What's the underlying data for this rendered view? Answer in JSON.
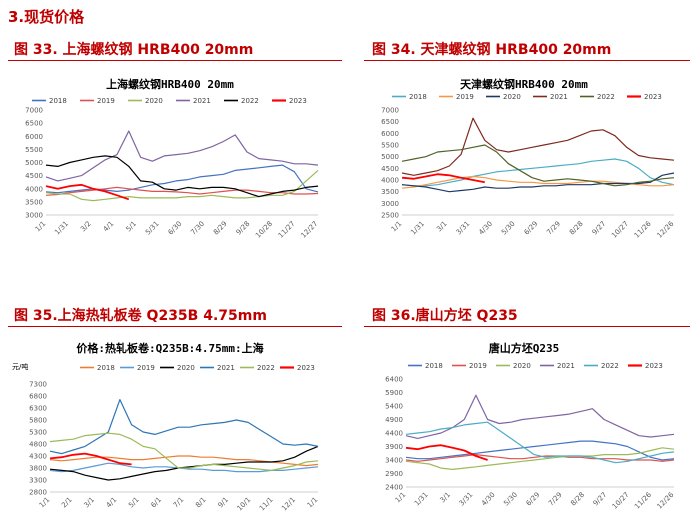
{
  "page": {
    "section_title": "3.现货价格"
  },
  "captions": {
    "fig33": "图 33.  上海螺纹钢 HRB400  20mm",
    "fig34": "图 34.  天津螺纹钢 HRB400  20mm",
    "fig35": "图 35.上海热轧板卷 Q235B 4.75mm",
    "fig36": "图 36.唐山方坯 Q235"
  },
  "colors": {
    "accent": "#c00000",
    "s2018": "#4472c4",
    "s2019": "#e0504f",
    "s2020": "#9bbb59",
    "s2021": "#8064a2",
    "s2022": "#000000",
    "s2023": "#ff0000"
  },
  "chart_data": [
    {
      "type": "line",
      "title": "上海螺纹钢HRB400 20mm",
      "ylim": [
        3000,
        7000
      ],
      "yticks": [
        3000,
        3500,
        4000,
        4500,
        5000,
        5500,
        6000,
        6500,
        7000
      ],
      "xticks": [
        "1/1",
        "1/31",
        "3/2",
        "4/1",
        "5/1",
        "5/31",
        "6/30",
        "7/30",
        "8/29",
        "9/28",
        "10/28",
        "11/27",
        "12/27"
      ],
      "legend_position": "top",
      "series": [
        {
          "name": "2018",
          "color": "#4472c4",
          "values": [
            3880,
            3850,
            3900,
            3950,
            4000,
            3950,
            3900,
            3950,
            4050,
            4150,
            4200,
            4300,
            4350,
            4450,
            4500,
            4550,
            4700,
            4750,
            4800,
            4850,
            4900,
            4650,
            4000,
            3880
          ]
        },
        {
          "name": "2019",
          "color": "#e0504f",
          "values": [
            3750,
            3780,
            3850,
            3900,
            3950,
            4000,
            4050,
            4000,
            3950,
            3900,
            3900,
            3880,
            3850,
            3800,
            3850,
            3900,
            3950,
            3950,
            3900,
            3850,
            3850,
            3800,
            3800,
            3820
          ]
        },
        {
          "name": "2020",
          "color": "#9bbb59",
          "values": [
            3850,
            3800,
            3800,
            3600,
            3550,
            3600,
            3650,
            3700,
            3650,
            3650,
            3650,
            3650,
            3700,
            3700,
            3750,
            3700,
            3650,
            3650,
            3700,
            3750,
            3750,
            3900,
            4300,
            4700
          ]
        },
        {
          "name": "2021",
          "color": "#8064a2",
          "values": [
            4450,
            4300,
            4400,
            4500,
            4800,
            5100,
            5300,
            6200,
            5200,
            5050,
            5250,
            5300,
            5350,
            5450,
            5600,
            5800,
            6050,
            5400,
            5150,
            5100,
            5050,
            4950,
            4950,
            4900
          ]
        },
        {
          "name": "2022",
          "color": "#000000",
          "values": [
            4900,
            4850,
            5000,
            5100,
            5200,
            5250,
            5200,
            4850,
            4300,
            4250,
            4000,
            3950,
            4050,
            4000,
            4050,
            4050,
            4000,
            3850,
            3700,
            3800,
            3900,
            3950,
            4050,
            4100
          ]
        },
        {
          "name": "2023",
          "color": "#ff0000",
          "values": [
            4100,
            4000,
            4100,
            4150,
            4000,
            3900,
            3750,
            3600
          ]
        }
      ]
    },
    {
      "type": "line",
      "title": "天津螺纹钢HRB400 20mm",
      "ylim": [
        2500,
        7000
      ],
      "yticks": [
        2500,
        3000,
        3500,
        4000,
        4500,
        5000,
        5500,
        6000,
        6500,
        7000
      ],
      "xticks": [
        "1/1",
        "1/31",
        "3/1",
        "3/31",
        "4/30",
        "5/30",
        "6/29",
        "7/29",
        "8/28",
        "9/27",
        "10/27",
        "11/26",
        "12/26"
      ],
      "legend_position": "top",
      "series": [
        {
          "name": "2018",
          "color": "#4bacc6",
          "values": [
            3800,
            3750,
            3750,
            3800,
            3900,
            4000,
            4150,
            4250,
            4350,
            4400,
            4450,
            4500,
            4550,
            4600,
            4650,
            4700,
            4800,
            4850,
            4900,
            4800,
            4500,
            4100,
            3900,
            3800
          ]
        },
        {
          "name": "2019",
          "color": "#f79646",
          "values": [
            3650,
            3700,
            3800,
            3900,
            4000,
            4100,
            4150,
            4100,
            4000,
            3950,
            3900,
            3900,
            3850,
            3850,
            3850,
            3900,
            3950,
            3950,
            3900,
            3850,
            3800,
            3750,
            3750,
            3800
          ]
        },
        {
          "name": "2020",
          "color": "#1f3864",
          "values": [
            3800,
            3750,
            3700,
            3600,
            3500,
            3550,
            3600,
            3700,
            3650,
            3650,
            3700,
            3700,
            3750,
            3750,
            3800,
            3800,
            3800,
            3850,
            3850,
            3850,
            3850,
            3900,
            4200,
            4300
          ]
        },
        {
          "name": "2021",
          "color": "#7f2a1e",
          "values": [
            4300,
            4200,
            4300,
            4400,
            4600,
            5100,
            6650,
            5700,
            5300,
            5200,
            5300,
            5400,
            5500,
            5600,
            5700,
            5900,
            6100,
            6150,
            5900,
            5400,
            5050,
            4950,
            4900,
            4850
          ]
        },
        {
          "name": "2022",
          "color": "#4f6228",
          "values": [
            4800,
            4900,
            5000,
            5200,
            5250,
            5300,
            5400,
            5500,
            5200,
            4700,
            4400,
            4100,
            3950,
            4000,
            4050,
            4000,
            3950,
            3850,
            3750,
            3800,
            3900,
            3950,
            4050,
            4100
          ]
        },
        {
          "name": "2023",
          "color": "#ff0000",
          "values": [
            4100,
            4050,
            4150,
            4250,
            4200,
            4100,
            4000,
            3900
          ]
        }
      ]
    },
    {
      "type": "line",
      "title": "价格:热轧板卷:Q235B:4.75mm:上海",
      "unit": "元/吨",
      "ylim": [
        2800,
        7300
      ],
      "yticks": [
        2800,
        3300,
        3800,
        4300,
        4800,
        5300,
        5800,
        6300,
        6800,
        7300
      ],
      "xticks": [
        "1/1",
        "2/1",
        "3/1",
        "4/1",
        "5/1",
        "6/1",
        "7/1",
        "8/1",
        "9/1",
        "10/1",
        "11/1",
        "12/1",
        "1/1"
      ],
      "legend_position": "top",
      "series": [
        {
          "name": "2018",
          "color": "#ed7d31",
          "values": [
            4150,
            4100,
            4150,
            4200,
            4250,
            4250,
            4200,
            4150,
            4150,
            4200,
            4250,
            4300,
            4300,
            4250,
            4250,
            4200,
            4150,
            4150,
            4100,
            4050,
            4000,
            3950,
            3900,
            3950
          ]
        },
        {
          "name": "2019",
          "color": "#5b9bd5",
          "values": [
            3700,
            3650,
            3700,
            3800,
            3900,
            4000,
            3950,
            3850,
            3800,
            3850,
            3850,
            3800,
            3750,
            3750,
            3700,
            3700,
            3650,
            3650,
            3650,
            3700,
            3700,
            3750,
            3800,
            3850
          ]
        },
        {
          "name": "2020",
          "color": "#000000",
          "values": [
            3750,
            3700,
            3650,
            3500,
            3400,
            3300,
            3350,
            3450,
            3550,
            3650,
            3700,
            3800,
            3850,
            3900,
            3950,
            3950,
            4000,
            4050,
            4050,
            4050,
            4100,
            4250,
            4500,
            4700
          ]
        },
        {
          "name": "2021",
          "color": "#2e75b6",
          "values": [
            4500,
            4400,
            4550,
            4700,
            5000,
            5300,
            6650,
            5600,
            5300,
            5200,
            5350,
            5500,
            5500,
            5600,
            5650,
            5700,
            5800,
            5700,
            5400,
            5100,
            4800,
            4750,
            4800,
            4700
          ]
        },
        {
          "name": "2022",
          "color": "#9bbb59",
          "values": [
            4900,
            4950,
            5000,
            5150,
            5200,
            5250,
            5200,
            5000,
            4700,
            4600,
            4200,
            3800,
            3800,
            3900,
            3950,
            3900,
            3850,
            3800,
            3750,
            3700,
            3800,
            3900,
            4050,
            4100
          ]
        },
        {
          "name": "2023",
          "color": "#ff0000",
          "values": [
            4200,
            4250,
            4350,
            4400,
            4300,
            4150,
            4000,
            3950
          ]
        }
      ]
    },
    {
      "type": "line",
      "title": "唐山方坯Q235",
      "ylim": [
        2400,
        6400
      ],
      "yticks": [
        2400,
        2900,
        3400,
        3900,
        4400,
        4900,
        5400,
        5900,
        6400
      ],
      "xticks": [
        "1/1",
        "1/31",
        "3/1",
        "3/31",
        "4/30",
        "5/30",
        "6/29",
        "7/29",
        "8/28",
        "9/27",
        "10/27",
        "11/26",
        "12/26"
      ],
      "legend_position": "top",
      "series": [
        {
          "name": "2018",
          "color": "#4472c4",
          "values": [
            3500,
            3450,
            3450,
            3500,
            3550,
            3600,
            3650,
            3700,
            3750,
            3800,
            3850,
            3900,
            3950,
            4000,
            4050,
            4100,
            4100,
            4050,
            4000,
            3900,
            3700,
            3500,
            3400,
            3450
          ]
        },
        {
          "name": "2019",
          "color": "#e0504f",
          "values": [
            3400,
            3350,
            3400,
            3450,
            3500,
            3550,
            3600,
            3550,
            3500,
            3450,
            3450,
            3500,
            3550,
            3550,
            3500,
            3500,
            3450,
            3450,
            3450,
            3400,
            3400,
            3400,
            3350,
            3400
          ]
        },
        {
          "name": "2020",
          "color": "#9bbb59",
          "values": [
            3350,
            3300,
            3250,
            3100,
            3050,
            3100,
            3150,
            3200,
            3250,
            3300,
            3350,
            3400,
            3450,
            3500,
            3550,
            3550,
            3550,
            3600,
            3600,
            3600,
            3650,
            3750,
            3850,
            3800
          ]
        },
        {
          "name": "2021",
          "color": "#8064a2",
          "values": [
            4300,
            4200,
            4300,
            4400,
            4600,
            4900,
            5800,
            4900,
            4750,
            4800,
            4900,
            4950,
            5000,
            5050,
            5100,
            5200,
            5300,
            4900,
            4700,
            4500,
            4300,
            4250,
            4300,
            4350
          ]
        },
        {
          "name": "2022",
          "color": "#4bacc6",
          "values": [
            4350,
            4400,
            4450,
            4550,
            4600,
            4700,
            4750,
            4800,
            4500,
            4200,
            3900,
            3600,
            3500,
            3550,
            3550,
            3550,
            3500,
            3400,
            3300,
            3350,
            3450,
            3550,
            3650,
            3700
          ]
        },
        {
          "name": "2023",
          "color": "#ff0000",
          "values": [
            3850,
            3800,
            3900,
            3950,
            3850,
            3750,
            3550,
            3400
          ]
        }
      ]
    }
  ]
}
